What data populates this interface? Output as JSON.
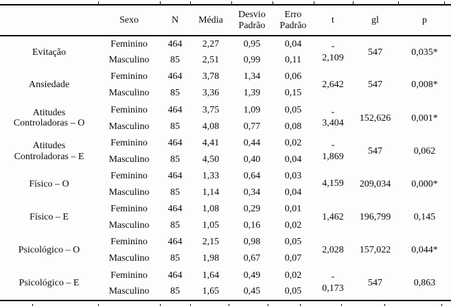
{
  "table": {
    "headers": {
      "variable": "",
      "sexo": "Sexo",
      "n": "N",
      "media": "Média",
      "desvio_padrao": "Desvio\nPadrão",
      "erro_padrao": "Erro\nPadrão",
      "t": "t",
      "gl": "gl",
      "p": "p"
    },
    "groups": [
      {
        "label": "Evitação",
        "rows": [
          {
            "sexo": "Feminino",
            "n": "464",
            "media": "2,27",
            "desvio_padrao": "0,95",
            "erro_padrao": "0,04"
          },
          {
            "sexo": "Masculino",
            "n": "85",
            "media": "2,51",
            "desvio_padrao": "0,99",
            "erro_padrao": "0,11"
          }
        ],
        "t": "-\n2,109",
        "gl": "547",
        "p": "0,035*"
      },
      {
        "label": "Ansiedade",
        "rows": [
          {
            "sexo": "Feminino",
            "n": "464",
            "media": "3,78",
            "desvio_padrao": "1,34",
            "erro_padrao": "0,06"
          },
          {
            "sexo": "Masculino",
            "n": "85",
            "media": "3,36",
            "desvio_padrao": "1,39",
            "erro_padrao": "0,15"
          }
        ],
        "t": "2,642",
        "gl": "547",
        "p": "0,008*"
      },
      {
        "label": "Atitudes\nControladoras – O",
        "rows": [
          {
            "sexo": "Feminino",
            "n": "464",
            "media": "3,75",
            "desvio_padrao": "1,09",
            "erro_padrao": "0,05"
          },
          {
            "sexo": "Masculino",
            "n": "85",
            "media": "4,08",
            "desvio_padrao": "0,77",
            "erro_padrao": "0,08"
          }
        ],
        "t": "-\n3,404",
        "gl": "152,626",
        "p": "0,001*"
      },
      {
        "label": "Atitudes\nControladoras – E",
        "rows": [
          {
            "sexo": "Feminino",
            "n": "464",
            "media": "4,41",
            "desvio_padrao": "0,44",
            "erro_padrao": "0,02"
          },
          {
            "sexo": "Masculino",
            "n": "85",
            "media": "4,50",
            "desvio_padrao": "0,40",
            "erro_padrao": "0,04"
          }
        ],
        "t": "-\n1,869",
        "gl": "547",
        "p": "0,062"
      },
      {
        "label": "Físico – O",
        "rows": [
          {
            "sexo": "Feminino",
            "n": "464",
            "media": "1,33",
            "desvio_padrao": "0,64",
            "erro_padrao": "0,03"
          },
          {
            "sexo": "Masculino",
            "n": "85",
            "media": "1,14",
            "desvio_padrao": "0,34",
            "erro_padrao": "0,04"
          }
        ],
        "t": "4,159",
        "gl": "209,034",
        "p": "0,000*"
      },
      {
        "label": "Físico – E",
        "rows": [
          {
            "sexo": "Feminino",
            "n": "464",
            "media": "1,08",
            "desvio_padrao": "0,29",
            "erro_padrao": "0,01"
          },
          {
            "sexo": "Masculino",
            "n": "85",
            "media": "1,05",
            "desvio_padrao": "0,16",
            "erro_padrao": "0,02"
          }
        ],
        "t": "1,462",
        "gl": "196,799",
        "p": "0,145"
      },
      {
        "label": "Psicológico – O",
        "rows": [
          {
            "sexo": "Feminino",
            "n": "464",
            "media": "2,15",
            "desvio_padrao": "0,98",
            "erro_padrao": "0,05"
          },
          {
            "sexo": "Masculino",
            "n": "85",
            "media": "1,98",
            "desvio_padrao": "0,67",
            "erro_padrao": "0,07"
          }
        ],
        "t": "2,028",
        "gl": "157,022",
        "p": "0,044*"
      },
      {
        "label": "Psicológico – E",
        "rows": [
          {
            "sexo": "Feminino",
            "n": "464",
            "media": "1,64",
            "desvio_padrao": "0,49",
            "erro_padrao": "0,02"
          },
          {
            "sexo": "Masculino",
            "n": "85",
            "media": "1,65",
            "desvio_padrao": "0,45",
            "erro_padrao": "0,05"
          }
        ],
        "t": "-\n0,173",
        "gl": "547",
        "p": "0,863"
      }
    ]
  }
}
